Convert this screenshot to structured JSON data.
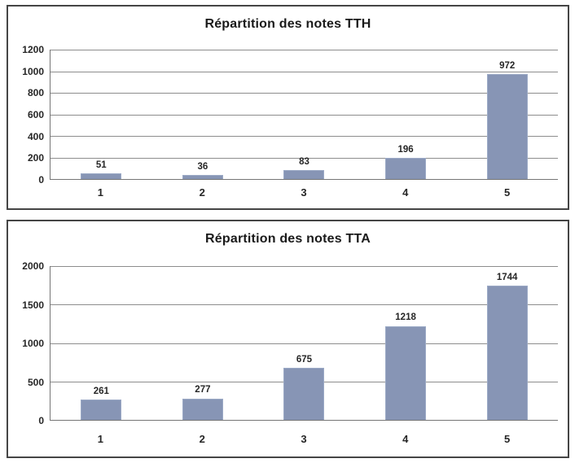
{
  "page": {
    "background": "#ffffff",
    "text_color": "#262626",
    "grid_color": "#8d8d8d",
    "axis_color": "#757575"
  },
  "chart_data": [
    {
      "type": "bar",
      "title": "Répartition des notes TTH",
      "categories": [
        "1",
        "2",
        "3",
        "4",
        "5"
      ],
      "values": [
        51,
        36,
        83,
        196,
        972
      ],
      "xlabel": "",
      "ylabel": "",
      "ylim": [
        0,
        1200
      ],
      "ytick_step": 200,
      "ytick_labels": [
        "0",
        "200",
        "400",
        "600",
        "800",
        "1000",
        "1200"
      ],
      "grid": true,
      "legend": "none",
      "data_labels": true,
      "bar_color": "#8795b5",
      "bar_border_color": "#9caac6"
    },
    {
      "type": "bar",
      "title": "Répartition des notes TTA",
      "categories": [
        "1",
        "2",
        "3",
        "4",
        "5"
      ],
      "values": [
        261,
        277,
        675,
        1218,
        1744
      ],
      "xlabel": "",
      "ylabel": "",
      "ylim": [
        0,
        2000
      ],
      "ytick_step": 500,
      "ytick_labels": [
        "0",
        "500",
        "1000",
        "1500",
        "2000"
      ],
      "grid": true,
      "legend": "none",
      "data_labels": true,
      "bar_color": "#8795b5",
      "bar_border_color": "#9caac6"
    }
  ]
}
